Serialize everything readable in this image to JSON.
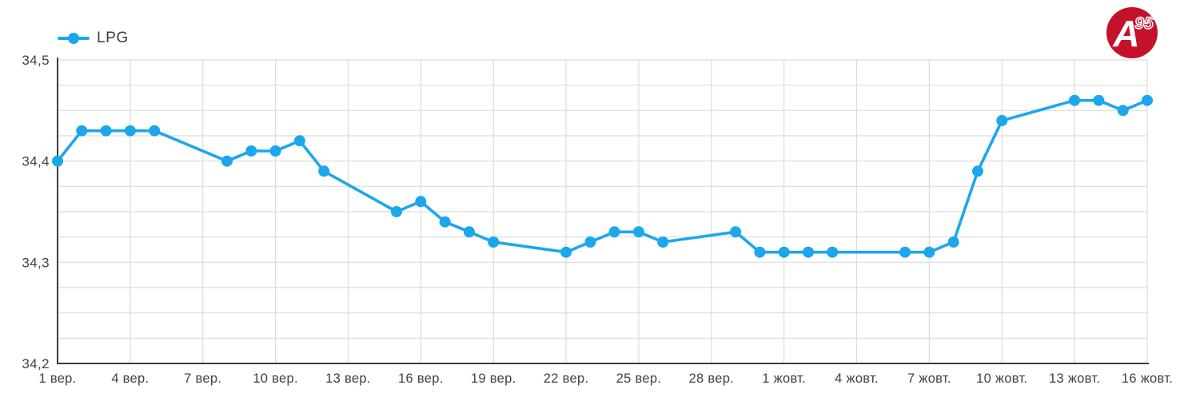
{
  "legend": {
    "label": "LPG"
  },
  "logo": {
    "text_a": "A",
    "text_sup": "95",
    "bg_color": "#c4122d",
    "fg_color": "#ffffff"
  },
  "colors": {
    "line": "#1ca7ec",
    "point": "#1ca7ec",
    "grid": "#dcdcdc",
    "axis": "#3d3d3d",
    "label": "#414141",
    "logo_red": "#c4122d"
  },
  "chart_data": {
    "type": "line",
    "title": "",
    "legend_entries": [
      "LPG"
    ],
    "legend_position": "top-left",
    "grid": true,
    "x_axis": {
      "range": [
        0,
        45
      ],
      "tick_positions": [
        0,
        3,
        6,
        9,
        12,
        15,
        18,
        21,
        24,
        27,
        30,
        33,
        36,
        39,
        42,
        45
      ],
      "tick_labels": [
        "1 вер.",
        "4 вер.",
        "7 вер.",
        "10 вер.",
        "13 вер.",
        "16 вер.",
        "19 вер.",
        "22 вер.",
        "25 вер.",
        "28 вер.",
        "1 жовт.",
        "4 жовт.",
        "7 жовт.",
        "10 жовт.",
        "13 жовт.",
        "16 жовт."
      ]
    },
    "y_axis": {
      "range": [
        34.2,
        34.5
      ],
      "ticks": [
        34.2,
        34.3,
        34.4,
        34.5
      ],
      "tick_labels": [
        "34,2",
        "34,3",
        "34,4",
        "34,5"
      ],
      "minor_grid_step": 0.025
    },
    "series": [
      {
        "name": "LPG",
        "color": "#1ca7ec",
        "x_days": [
          0,
          1,
          2,
          3,
          4,
          7,
          8,
          9,
          10,
          11,
          14,
          15,
          16,
          17,
          18,
          21,
          22,
          23,
          24,
          25,
          28,
          29,
          30,
          31,
          32,
          35,
          36,
          37,
          38,
          39,
          42,
          43,
          44,
          45
        ],
        "values": [
          34.4,
          34.43,
          34.43,
          34.43,
          34.43,
          34.4,
          34.41,
          34.41,
          34.42,
          34.39,
          34.35,
          34.36,
          34.34,
          34.33,
          34.32,
          34.31,
          34.32,
          34.33,
          34.33,
          34.32,
          34.33,
          34.31,
          34.31,
          34.31,
          34.31,
          34.31,
          34.31,
          34.32,
          34.39,
          34.44,
          34.46,
          34.46,
          34.45,
          34.46
        ]
      }
    ]
  }
}
